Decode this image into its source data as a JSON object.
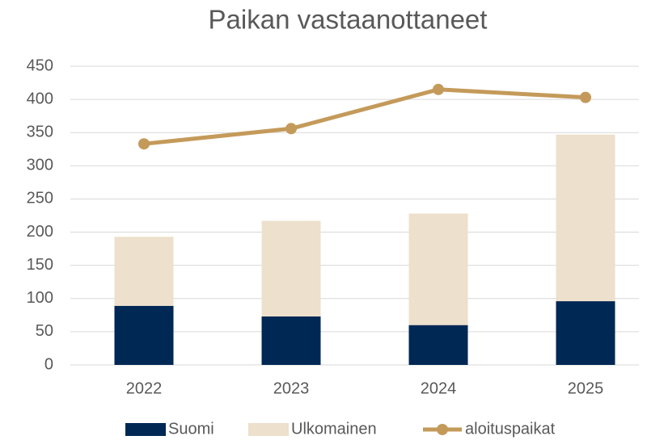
{
  "chart_data": {
    "type": "bar",
    "stacked": true,
    "title": "Paikan  vastaanottaneet",
    "categories": [
      "2022",
      "2023",
      "2024",
      "2025"
    ],
    "series": [
      {
        "name": "Suomi",
        "color": "#002855",
        "values": [
          89,
          73,
          60,
          96
        ]
      },
      {
        "name": "Ulkomainen",
        "color": "#ede0cc",
        "values": [
          104,
          144,
          168,
          251
        ]
      },
      {
        "name": "aloituspaikat",
        "color": "#c49a5a",
        "type": "line",
        "values": [
          333,
          356,
          415,
          403
        ]
      }
    ],
    "ylim": [
      0,
      450
    ],
    "yticks": [
      0,
      50,
      100,
      150,
      200,
      250,
      300,
      350,
      400,
      450
    ],
    "grid": true,
    "legend": "bottom"
  }
}
